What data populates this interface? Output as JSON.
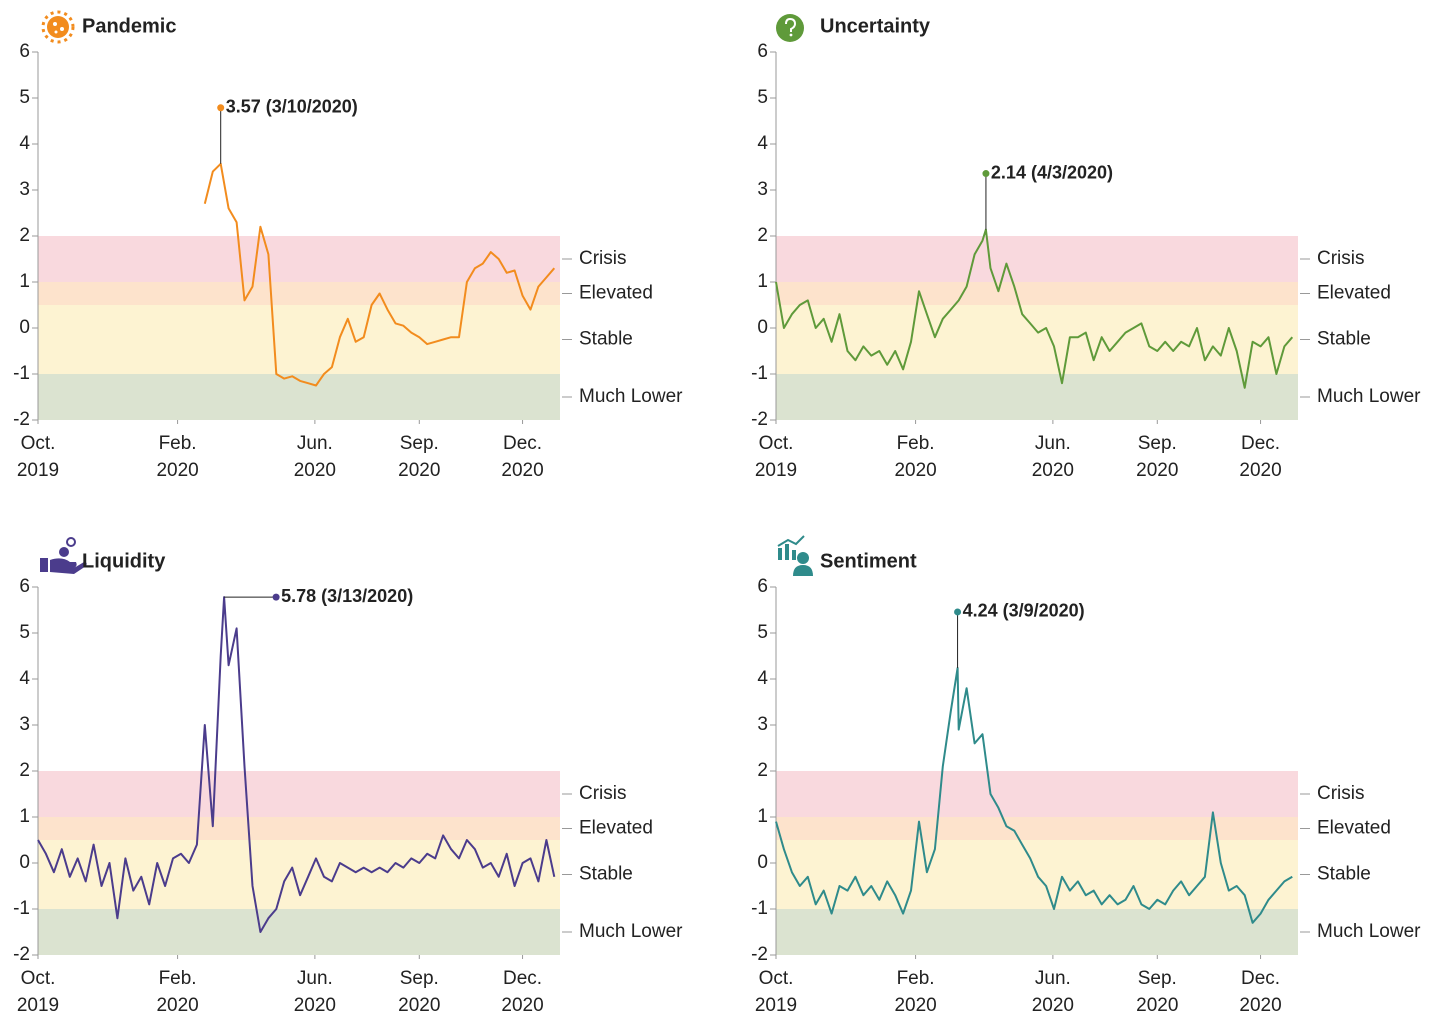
{
  "chart_data": [
    {
      "type": "line",
      "title": "Pandemic",
      "color": "#f28c1e",
      "x": [
        "10/1/2019",
        "10/8/2019",
        "10/15/2019",
        "10/22/2019",
        "10/29/2019",
        "11/5/2019",
        "11/12/2019",
        "11/19/2019",
        "11/26/2019",
        "12/3/2019",
        "12/10/2019",
        "12/17/2019",
        "12/24/2019",
        "12/31/2019",
        "1/7/2020",
        "1/14/2020",
        "1/21/2020",
        "1/28/2020",
        "2/4/2020",
        "2/11/2020",
        "2/18/2020",
        "2/25/2020",
        "3/3/2020",
        "3/10/2020",
        "3/17/2020",
        "3/24/2020",
        "3/31/2020",
        "4/7/2020",
        "4/14/2020",
        "4/21/2020",
        "4/28/2020",
        "5/5/2020",
        "5/12/2020",
        "5/19/2020",
        "5/26/2020",
        "6/2/2020",
        "6/9/2020",
        "6/16/2020",
        "6/23/2020",
        "6/30/2020",
        "7/7/2020",
        "7/14/2020",
        "7/21/2020",
        "7/28/2020",
        "8/4/2020",
        "8/11/2020",
        "8/18/2020",
        "8/25/2020",
        "9/1/2020",
        "9/8/2020",
        "9/15/2020",
        "9/22/2020",
        "9/29/2020",
        "10/6/2020",
        "10/13/2020",
        "10/20/2020",
        "10/27/2020",
        "11/3/2020",
        "11/10/2020",
        "11/17/2020",
        "11/24/2020",
        "12/1/2020",
        "12/8/2020",
        "12/15/2020",
        "12/22/2020",
        "12/29/2020"
      ],
      "values": [
        null,
        null,
        null,
        null,
        null,
        null,
        null,
        null,
        null,
        null,
        null,
        null,
        null,
        null,
        null,
        null,
        null,
        null,
        null,
        null,
        null,
        2.7,
        3.4,
        3.57,
        2.6,
        2.3,
        0.6,
        0.9,
        2.2,
        1.6,
        -1.0,
        -1.1,
        -1.05,
        -1.15,
        -1.2,
        -1.25,
        -1.0,
        -0.85,
        -0.2,
        0.2,
        -0.3,
        -0.2,
        0.5,
        0.75,
        0.4,
        0.1,
        0.05,
        -0.1,
        -0.2,
        -0.35,
        -0.3,
        -0.25,
        -0.2,
        -0.2,
        1.0,
        1.3,
        1.4,
        1.65,
        1.5,
        1.2,
        1.25,
        0.7,
        0.4,
        0.9,
        1.1,
        1.3
      ],
      "annotation": {
        "text": "3.57 (3/10/2020)",
        "x": "3/10/2020",
        "y": 3.57,
        "placement": "above"
      },
      "xlim": [
        "10/1/2019",
        "1/3/2021"
      ],
      "ylim": [
        -2,
        6
      ],
      "yticks": [
        -2,
        -1,
        0,
        1,
        2,
        3,
        4,
        5,
        6
      ],
      "xticks": [
        {
          "value": "10/1/2019",
          "label": [
            "Oct.",
            "2019"
          ]
        },
        {
          "value": "2/1/2020",
          "label": [
            "Feb.",
            "2020"
          ]
        },
        {
          "value": "6/1/2020",
          "label": [
            "Jun.",
            "2020"
          ]
        },
        {
          "value": "9/1/2020",
          "label": [
            "Sep.",
            "2020"
          ]
        },
        {
          "value": "12/1/2020",
          "label": [
            "Dec.",
            "2020"
          ]
        }
      ],
      "bands": [
        {
          "label": "Crisis",
          "from": 1,
          "to": 2,
          "color": "#f9d9de"
        },
        {
          "label": "Elevated",
          "from": 0.5,
          "to": 1,
          "color": "#fde3cc"
        },
        {
          "label": "Stable",
          "from": -1,
          "to": 0.5,
          "color": "#fdf3d2"
        },
        {
          "label": "Much Lower",
          "from": -2,
          "to": -1,
          "color": "#dbe3d0"
        }
      ]
    },
    {
      "type": "line",
      "title": "Uncertainty",
      "color": "#5f9a3a",
      "x": [
        "10/1/2019",
        "10/8/2019",
        "10/15/2019",
        "10/22/2019",
        "10/29/2019",
        "11/5/2019",
        "11/12/2019",
        "11/19/2019",
        "11/26/2019",
        "12/3/2019",
        "12/10/2019",
        "12/17/2019",
        "12/24/2019",
        "12/31/2019",
        "1/7/2020",
        "1/14/2020",
        "1/21/2020",
        "1/28/2020",
        "2/4/2020",
        "2/11/2020",
        "2/18/2020",
        "2/25/2020",
        "3/3/2020",
        "3/10/2020",
        "3/17/2020",
        "3/24/2020",
        "3/31/2020",
        "4/3/2020",
        "4/7/2020",
        "4/14/2020",
        "4/21/2020",
        "4/28/2020",
        "5/5/2020",
        "5/12/2020",
        "5/19/2020",
        "5/26/2020",
        "6/2/2020",
        "6/9/2020",
        "6/16/2020",
        "6/23/2020",
        "6/30/2020",
        "7/7/2020",
        "7/14/2020",
        "7/21/2020",
        "7/28/2020",
        "8/4/2020",
        "8/11/2020",
        "8/18/2020",
        "8/25/2020",
        "9/1/2020",
        "9/8/2020",
        "9/15/2020",
        "9/22/2020",
        "9/29/2020",
        "10/6/2020",
        "10/13/2020",
        "10/20/2020",
        "10/27/2020",
        "11/3/2020",
        "11/10/2020",
        "11/17/2020",
        "11/24/2020",
        "12/1/2020",
        "12/8/2020",
        "12/15/2020",
        "12/22/2020",
        "12/29/2020"
      ],
      "values": [
        1.0,
        0.0,
        0.3,
        0.5,
        0.6,
        0.0,
        0.2,
        -0.3,
        0.3,
        -0.5,
        -0.7,
        -0.4,
        -0.6,
        -0.5,
        -0.8,
        -0.5,
        -0.9,
        -0.3,
        0.8,
        0.3,
        -0.2,
        0.2,
        0.4,
        0.6,
        0.9,
        1.6,
        1.9,
        2.14,
        1.3,
        0.8,
        1.4,
        0.9,
        0.3,
        0.1,
        -0.1,
        0.0,
        -0.4,
        -1.2,
        -0.2,
        -0.2,
        -0.1,
        -0.7,
        -0.2,
        -0.5,
        -0.3,
        -0.1,
        0.0,
        0.1,
        -0.4,
        -0.5,
        -0.3,
        -0.5,
        -0.3,
        -0.4,
        0.0,
        -0.7,
        -0.4,
        -0.6,
        0.0,
        -0.5,
        -1.3,
        -0.3,
        -0.4,
        -0.2,
        -1.0,
        -0.4,
        -0.2
      ],
      "annotation": {
        "text": "2.14 (4/3/2020)",
        "x": "4/3/2020",
        "y": 2.14,
        "placement": "above"
      },
      "xlim": [
        "10/1/2019",
        "1/3/2021"
      ],
      "ylim": [
        -2,
        6
      ],
      "yticks": [
        -2,
        -1,
        0,
        1,
        2,
        3,
        4,
        5,
        6
      ],
      "xticks": [
        {
          "value": "10/1/2019",
          "label": [
            "Oct.",
            "2019"
          ]
        },
        {
          "value": "2/1/2020",
          "label": [
            "Feb.",
            "2020"
          ]
        },
        {
          "value": "6/1/2020",
          "label": [
            "Jun.",
            "2020"
          ]
        },
        {
          "value": "9/1/2020",
          "label": [
            "Sep.",
            "2020"
          ]
        },
        {
          "value": "12/1/2020",
          "label": [
            "Dec.",
            "2020"
          ]
        }
      ],
      "bands": [
        {
          "label": "Crisis",
          "from": 1,
          "to": 2,
          "color": "#f9d9de"
        },
        {
          "label": "Elevated",
          "from": 0.5,
          "to": 1,
          "color": "#fde3cc"
        },
        {
          "label": "Stable",
          "from": -1,
          "to": 0.5,
          "color": "#fdf3d2"
        },
        {
          "label": "Much Lower",
          "from": -2,
          "to": -1,
          "color": "#dbe3d0"
        }
      ]
    },
    {
      "type": "line",
      "title": "Liquidity",
      "color": "#4b3c8c",
      "x": [
        "10/1/2019",
        "10/8/2019",
        "10/15/2019",
        "10/22/2019",
        "10/29/2019",
        "11/5/2019",
        "11/12/2019",
        "11/19/2019",
        "11/26/2019",
        "12/3/2019",
        "12/10/2019",
        "12/17/2019",
        "12/24/2019",
        "12/31/2019",
        "1/7/2020",
        "1/14/2020",
        "1/21/2020",
        "1/28/2020",
        "2/4/2020",
        "2/11/2020",
        "2/18/2020",
        "2/25/2020",
        "3/3/2020",
        "3/10/2020",
        "3/13/2020",
        "3/17/2020",
        "3/24/2020",
        "3/31/2020",
        "4/7/2020",
        "4/14/2020",
        "4/21/2020",
        "4/28/2020",
        "5/5/2020",
        "5/12/2020",
        "5/19/2020",
        "5/26/2020",
        "6/2/2020",
        "6/9/2020",
        "6/16/2020",
        "6/23/2020",
        "6/30/2020",
        "7/7/2020",
        "7/14/2020",
        "7/21/2020",
        "7/28/2020",
        "8/4/2020",
        "8/11/2020",
        "8/18/2020",
        "8/25/2020",
        "9/1/2020",
        "9/8/2020",
        "9/15/2020",
        "9/22/2020",
        "9/29/2020",
        "10/6/2020",
        "10/13/2020",
        "10/20/2020",
        "10/27/2020",
        "11/3/2020",
        "11/10/2020",
        "11/17/2020",
        "11/24/2020",
        "12/1/2020",
        "12/8/2020",
        "12/15/2020",
        "12/22/2020",
        "12/29/2020"
      ],
      "values": [
        0.5,
        0.2,
        -0.2,
        0.3,
        -0.3,
        0.1,
        -0.4,
        0.4,
        -0.5,
        0.0,
        -1.2,
        0.1,
        -0.6,
        -0.3,
        -0.9,
        0.0,
        -0.5,
        0.1,
        0.2,
        0.0,
        0.4,
        3.0,
        0.8,
        4.5,
        5.78,
        4.3,
        5.1,
        2.1,
        -0.5,
        -1.5,
        -1.2,
        -1.0,
        -0.4,
        -0.1,
        -0.7,
        -0.3,
        0.1,
        -0.3,
        -0.4,
        0.0,
        -0.1,
        -0.2,
        -0.1,
        -0.2,
        -0.1,
        -0.2,
        0.0,
        -0.1,
        0.1,
        0.0,
        0.2,
        0.1,
        0.6,
        0.3,
        0.1,
        0.5,
        0.3,
        -0.1,
        0.0,
        -0.3,
        0.2,
        -0.5,
        0.0,
        0.1,
        -0.4,
        0.5,
        -0.3
      ],
      "annotation": {
        "text": "5.78 (3/13/2020)",
        "x": "3/13/2020",
        "y": 5.78,
        "placement": "right"
      },
      "xlim": [
        "10/1/2019",
        "1/3/2021"
      ],
      "ylim": [
        -2,
        6
      ],
      "yticks": [
        -2,
        -1,
        0,
        1,
        2,
        3,
        4,
        5,
        6
      ],
      "xticks": [
        {
          "value": "10/1/2019",
          "label": [
            "Oct.",
            "2019"
          ]
        },
        {
          "value": "2/1/2020",
          "label": [
            "Feb.",
            "2020"
          ]
        },
        {
          "value": "6/1/2020",
          "label": [
            "Jun.",
            "2020"
          ]
        },
        {
          "value": "9/1/2020",
          "label": [
            "Sep.",
            "2020"
          ]
        },
        {
          "value": "12/1/2020",
          "label": [
            "Dec.",
            "2020"
          ]
        }
      ],
      "bands": [
        {
          "label": "Crisis",
          "from": 1,
          "to": 2,
          "color": "#f9d9de"
        },
        {
          "label": "Elevated",
          "from": 0.5,
          "to": 1,
          "color": "#fde3cc"
        },
        {
          "label": "Stable",
          "from": -1,
          "to": 0.5,
          "color": "#fdf3d2"
        },
        {
          "label": "Much Lower",
          "from": -2,
          "to": -1,
          "color": "#dbe3d0"
        }
      ]
    },
    {
      "type": "line",
      "title": "Sentiment",
      "color": "#2f8b8b",
      "x": [
        "10/1/2019",
        "10/8/2019",
        "10/15/2019",
        "10/22/2019",
        "10/29/2019",
        "11/5/2019",
        "11/12/2019",
        "11/19/2019",
        "11/26/2019",
        "12/3/2019",
        "12/10/2019",
        "12/17/2019",
        "12/24/2019",
        "12/31/2019",
        "1/7/2020",
        "1/14/2020",
        "1/21/2020",
        "1/28/2020",
        "2/4/2020",
        "2/11/2020",
        "2/18/2020",
        "2/25/2020",
        "3/3/2020",
        "3/9/2020",
        "3/10/2020",
        "3/17/2020",
        "3/24/2020",
        "3/31/2020",
        "4/7/2020",
        "4/14/2020",
        "4/21/2020",
        "4/28/2020",
        "5/5/2020",
        "5/12/2020",
        "5/19/2020",
        "5/26/2020",
        "6/2/2020",
        "6/9/2020",
        "6/16/2020",
        "6/23/2020",
        "6/30/2020",
        "7/7/2020",
        "7/14/2020",
        "7/21/2020",
        "7/28/2020",
        "8/4/2020",
        "8/11/2020",
        "8/18/2020",
        "8/25/2020",
        "9/1/2020",
        "9/8/2020",
        "9/15/2020",
        "9/22/2020",
        "9/29/2020",
        "10/6/2020",
        "10/13/2020",
        "10/20/2020",
        "10/27/2020",
        "11/3/2020",
        "11/10/2020",
        "11/17/2020",
        "11/24/2020",
        "12/1/2020",
        "12/8/2020",
        "12/15/2020",
        "12/22/2020",
        "12/29/2020"
      ],
      "values": [
        0.9,
        0.3,
        -0.2,
        -0.5,
        -0.3,
        -0.9,
        -0.6,
        -1.1,
        -0.5,
        -0.6,
        -0.3,
        -0.7,
        -0.5,
        -0.8,
        -0.4,
        -0.7,
        -1.1,
        -0.6,
        0.9,
        -0.2,
        0.3,
        2.1,
        3.3,
        4.24,
        2.9,
        3.8,
        2.6,
        2.8,
        1.5,
        1.2,
        0.8,
        0.7,
        0.4,
        0.1,
        -0.3,
        -0.5,
        -1.0,
        -0.3,
        -0.6,
        -0.4,
        -0.7,
        -0.6,
        -0.9,
        -0.7,
        -0.9,
        -0.8,
        -0.5,
        -0.9,
        -1.0,
        -0.8,
        -0.9,
        -0.6,
        -0.4,
        -0.7,
        -0.5,
        -0.3,
        1.1,
        0.0,
        -0.6,
        -0.5,
        -0.7,
        -1.3,
        -1.1,
        -0.8,
        -0.6,
        -0.4,
        -0.3
      ],
      "annotation": {
        "text": "4.24 (3/9/2020)",
        "x": "3/9/2020",
        "y": 4.24,
        "placement": "above"
      },
      "xlim": [
        "10/1/2019",
        "1/3/2021"
      ],
      "ylim": [
        -2,
        6
      ],
      "yticks": [
        -2,
        -1,
        0,
        1,
        2,
        3,
        4,
        5,
        6
      ],
      "xticks": [
        {
          "value": "10/1/2019",
          "label": [
            "Oct.",
            "2019"
          ]
        },
        {
          "value": "2/1/2020",
          "label": [
            "Feb.",
            "2020"
          ]
        },
        {
          "value": "6/1/2020",
          "label": [
            "Jun.",
            "2020"
          ]
        },
        {
          "value": "9/1/2020",
          "label": [
            "Sep.",
            "2020"
          ]
        },
        {
          "value": "12/1/2020",
          "label": [
            "Dec.",
            "2020"
          ]
        }
      ],
      "bands": [
        {
          "label": "Crisis",
          "from": 1,
          "to": 2,
          "color": "#f9d9de"
        },
        {
          "label": "Elevated",
          "from": 0.5,
          "to": 1,
          "color": "#fde3cc"
        },
        {
          "label": "Stable",
          "from": -1,
          "to": 0.5,
          "color": "#fdf3d2"
        },
        {
          "label": "Much Lower",
          "from": -2,
          "to": -1,
          "color": "#dbe3d0"
        }
      ]
    }
  ]
}
